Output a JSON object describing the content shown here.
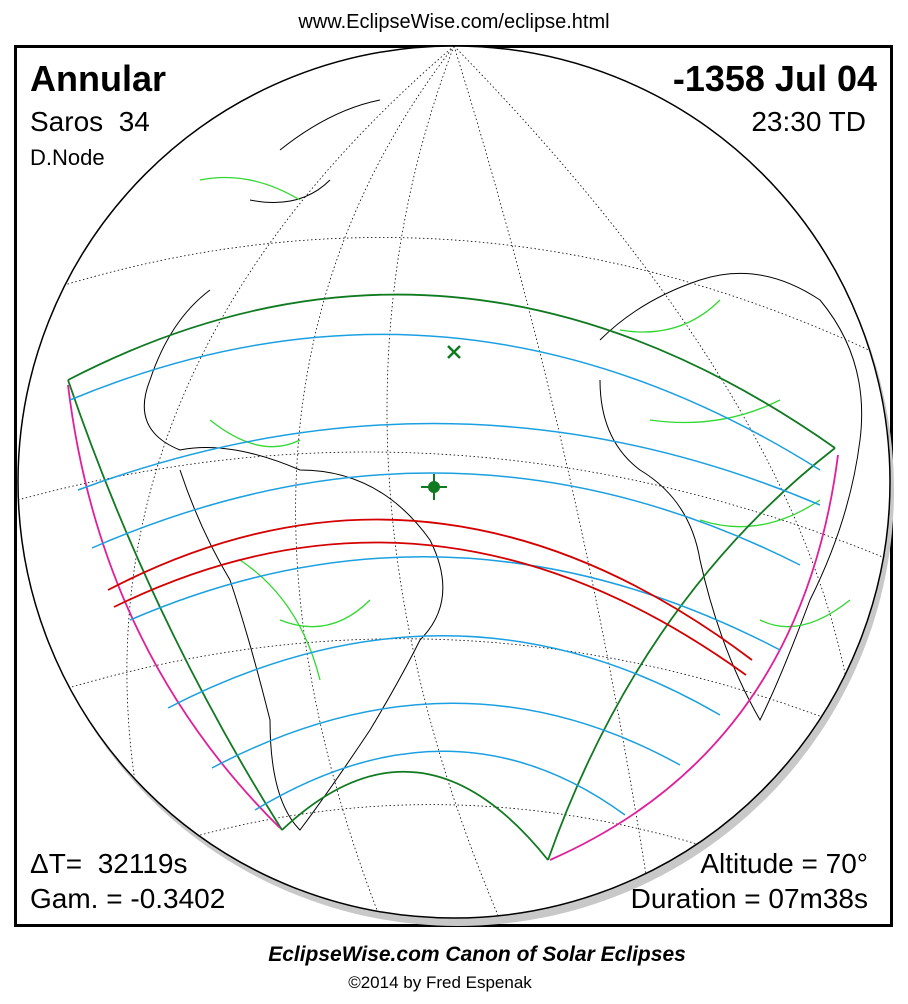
{
  "header": {
    "url": "www.EclipseWise.com/eclipse.html"
  },
  "panel": {
    "eclipse_type": "Annular",
    "date": "-1358 Jul 04",
    "saros": "Saros  34",
    "time": "23:30 TD",
    "node": "D.Node",
    "delta_t": "ΔT=  32119s",
    "gamma": "Gam. = -0.3402",
    "altitude": "Altitude = 70°",
    "duration": "Duration = 07m38s"
  },
  "footer": {
    "title": "EclipseWise.com Canon of Solar Eclipses",
    "credit": "©2014 by Fred Espenak"
  }
}
